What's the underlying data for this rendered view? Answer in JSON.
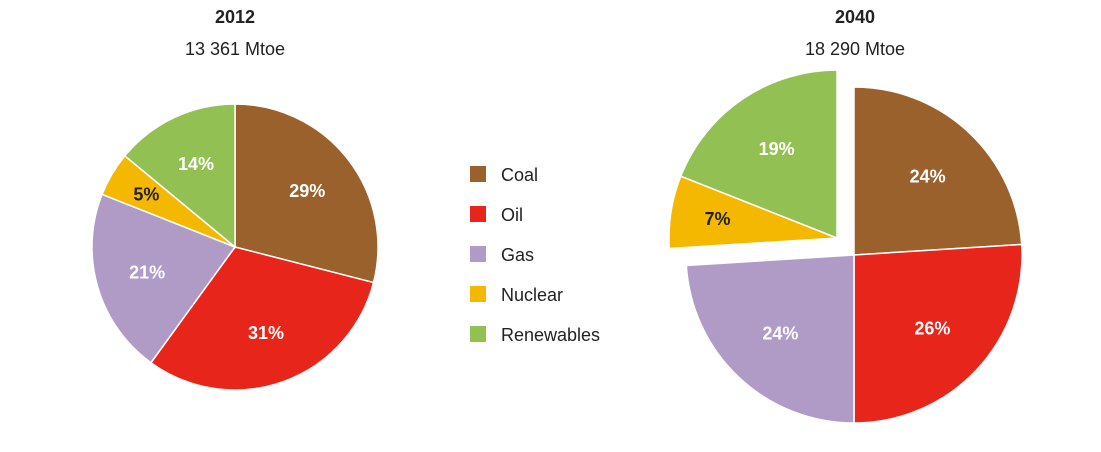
{
  "chart_data": [
    {
      "type": "pie",
      "title": "2012",
      "subtitle": "13 361 Mtoe",
      "slices": [
        {
          "label": "Coal",
          "value": 29,
          "display": "29%"
        },
        {
          "label": "Oil",
          "value": 31,
          "display": "31%"
        },
        {
          "label": "Gas",
          "value": 21,
          "display": "21%"
        },
        {
          "label": "Nuclear",
          "value": 5,
          "display": "5%"
        },
        {
          "label": "Renewables",
          "value": 14,
          "display": "14%"
        }
      ],
      "exploded": null
    },
    {
      "type": "pie",
      "title": "2040",
      "subtitle": "18 290 Mtoe",
      "slices": [
        {
          "label": "Coal",
          "value": 24,
          "display": "24%"
        },
        {
          "label": "Oil",
          "value": 26,
          "display": "26%"
        },
        {
          "label": "Gas",
          "value": 24,
          "display": "24%"
        },
        {
          "label": "Nuclear",
          "value": 7,
          "display": "7%"
        },
        {
          "label": "Renewables",
          "value": 19,
          "display": "19%"
        }
      ],
      "exploded": [
        "Nuclear",
        "Renewables"
      ]
    }
  ],
  "legend": [
    {
      "label": "Coal",
      "color": "#9b612c"
    },
    {
      "label": "Oil",
      "color": "#e8251b"
    },
    {
      "label": "Gas",
      "color": "#b09bc7"
    },
    {
      "label": "Nuclear",
      "color": "#f5b800"
    },
    {
      "label": "Renewables",
      "color": "#93c052"
    }
  ],
  "label_colors": {
    "Coal": "#ffffff",
    "Oil": "#ffffff",
    "Gas": "#ffffff",
    "Nuclear": "#222222",
    "Renewables": "#ffffff"
  }
}
